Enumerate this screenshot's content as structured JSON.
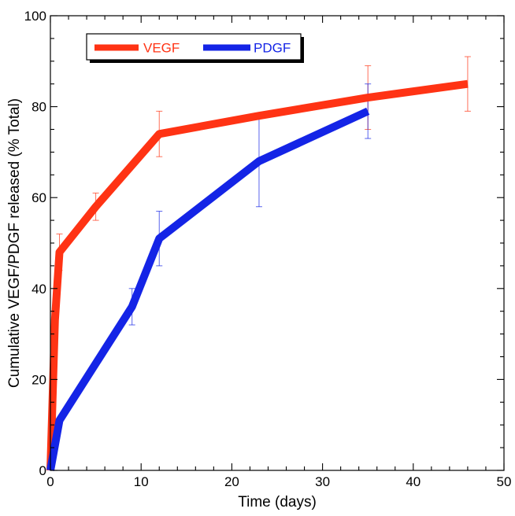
{
  "chart_data": {
    "type": "line",
    "title": "",
    "xlabel": "Time (days)",
    "ylabel": "Cumulative VEGF/PDGF released (% Total)",
    "xlim": [
      0,
      50
    ],
    "ylim": [
      0,
      100
    ],
    "x_ticks": [
      0,
      10,
      20,
      30,
      40,
      50
    ],
    "y_ticks": [
      0,
      20,
      40,
      60,
      80,
      100
    ],
    "x_tick_labels": [
      "0",
      "10",
      "20",
      "30",
      "40",
      "50"
    ],
    "y_tick_labels": [
      "0",
      "20",
      "40",
      "60",
      "80",
      "100"
    ],
    "grid": false,
    "legend_position": "top-left",
    "series": [
      {
        "name": "VEGF",
        "color": "#ff3314",
        "x": [
          0,
          0.5,
          1,
          5,
          12,
          23,
          35,
          46
        ],
        "y": [
          0,
          33,
          48,
          58,
          74,
          78,
          82,
          85
        ],
        "error_x": [
          1,
          5,
          12,
          35,
          46
        ],
        "error_low": [
          44,
          55,
          69,
          75,
          79
        ],
        "error_high": [
          52,
          61,
          79,
          89,
          91
        ]
      },
      {
        "name": "PDGF",
        "color": "#1424e6",
        "x": [
          0,
          1,
          9,
          12,
          23,
          35
        ],
        "y": [
          0,
          11,
          36,
          51,
          68,
          79
        ],
        "error_x": [
          9,
          12,
          23,
          35
        ],
        "error_low": [
          32,
          45,
          58,
          73
        ],
        "error_high": [
          40,
          57,
          78,
          85
        ]
      }
    ]
  }
}
